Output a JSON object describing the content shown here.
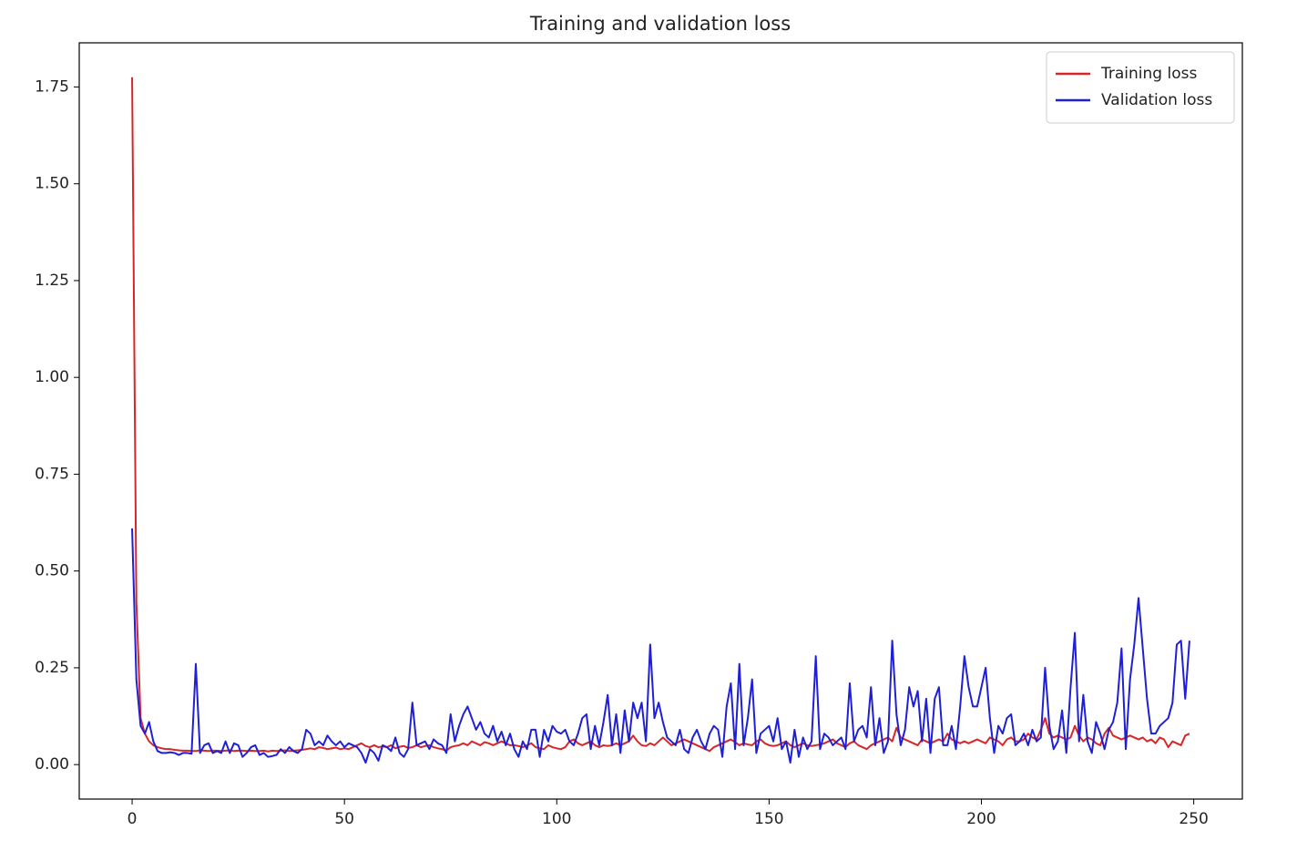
{
  "chart_data": {
    "type": "line",
    "title": "Training and validation loss",
    "x": [
      0,
      1,
      2,
      3,
      4,
      5,
      6,
      7,
      8,
      9,
      10,
      11,
      12,
      13,
      14,
      15,
      16,
      17,
      18,
      19,
      20,
      21,
      22,
      23,
      24,
      25,
      26,
      27,
      28,
      29,
      30,
      31,
      32,
      33,
      34,
      35,
      36,
      37,
      38,
      39,
      40,
      41,
      42,
      43,
      44,
      45,
      46,
      47,
      48,
      49,
      50,
      51,
      52,
      53,
      54,
      55,
      56,
      57,
      58,
      59,
      60,
      61,
      62,
      63,
      64,
      65,
      66,
      67,
      68,
      69,
      70,
      71,
      72,
      73,
      74,
      75,
      76,
      77,
      78,
      79,
      80,
      81,
      82,
      83,
      84,
      85,
      86,
      87,
      88,
      89,
      90,
      91,
      92,
      93,
      94,
      95,
      96,
      97,
      98,
      99,
      100,
      101,
      102,
      103,
      104,
      105,
      106,
      107,
      108,
      109,
      110,
      111,
      112,
      113,
      114,
      115,
      116,
      117,
      118,
      119,
      120,
      121,
      122,
      123,
      124,
      125,
      126,
      127,
      128,
      129,
      130,
      131,
      132,
      133,
      134,
      135,
      136,
      137,
      138,
      139,
      140,
      141,
      142,
      143,
      144,
      145,
      146,
      147,
      148,
      149,
      150,
      151,
      152,
      153,
      154,
      155,
      156,
      157,
      158,
      159,
      160,
      161,
      162,
      163,
      164,
      165,
      166,
      167,
      168,
      169,
      170,
      171,
      172,
      173,
      174,
      175,
      176,
      177,
      178,
      179,
      180,
      181,
      182,
      183,
      184,
      185,
      186,
      187,
      188,
      189,
      190,
      191,
      192,
      193,
      194,
      195,
      196,
      197,
      198,
      199,
      200,
      201,
      202,
      203,
      204,
      205,
      206,
      207,
      208,
      209,
      210,
      211,
      212,
      213,
      214,
      215,
      216,
      217,
      218,
      219,
      220,
      221,
      222,
      223,
      224,
      225,
      226,
      227,
      228,
      229,
      230,
      231,
      232,
      233,
      234,
      235,
      236,
      237,
      238,
      239,
      240,
      241,
      242,
      243,
      244,
      245,
      246,
      247,
      248,
      249
    ],
    "series": [
      {
        "name": "Training loss",
        "color": "#d62728",
        "values": [
          1.775,
          0.42,
          0.12,
          0.08,
          0.06,
          0.05,
          0.045,
          0.042,
          0.04,
          0.04,
          0.038,
          0.037,
          0.036,
          0.036,
          0.035,
          0.035,
          0.037,
          0.036,
          0.035,
          0.036,
          0.036,
          0.035,
          0.036,
          0.037,
          0.035,
          0.036,
          0.036,
          0.035,
          0.036,
          0.035,
          0.035,
          0.036,
          0.034,
          0.036,
          0.035,
          0.036,
          0.037,
          0.035,
          0.036,
          0.037,
          0.038,
          0.04,
          0.042,
          0.04,
          0.045,
          0.043,
          0.04,
          0.042,
          0.044,
          0.04,
          0.042,
          0.04,
          0.045,
          0.05,
          0.055,
          0.048,
          0.045,
          0.05,
          0.045,
          0.047,
          0.045,
          0.05,
          0.042,
          0.046,
          0.048,
          0.043,
          0.045,
          0.05,
          0.045,
          0.048,
          0.05,
          0.045,
          0.042,
          0.04,
          0.036,
          0.045,
          0.048,
          0.05,
          0.055,
          0.05,
          0.06,
          0.055,
          0.05,
          0.058,
          0.055,
          0.05,
          0.055,
          0.06,
          0.055,
          0.05,
          0.05,
          0.048,
          0.045,
          0.05,
          0.055,
          0.045,
          0.042,
          0.04,
          0.05,
          0.045,
          0.042,
          0.04,
          0.045,
          0.06,
          0.065,
          0.055,
          0.05,
          0.055,
          0.06,
          0.05,
          0.045,
          0.05,
          0.048,
          0.05,
          0.055,
          0.05,
          0.055,
          0.06,
          0.075,
          0.06,
          0.05,
          0.048,
          0.055,
          0.05,
          0.06,
          0.07,
          0.06,
          0.05,
          0.055,
          0.06,
          0.065,
          0.06,
          0.055,
          0.05,
          0.045,
          0.04,
          0.035,
          0.045,
          0.05,
          0.055,
          0.06,
          0.065,
          0.058,
          0.05,
          0.055,
          0.052,
          0.05,
          0.06,
          0.065,
          0.055,
          0.05,
          0.048,
          0.05,
          0.055,
          0.06,
          0.05,
          0.045,
          0.05,
          0.055,
          0.05,
          0.048,
          0.05,
          0.052,
          0.055,
          0.06,
          0.065,
          0.055,
          0.05,
          0.045,
          0.055,
          0.06,
          0.05,
          0.045,
          0.04,
          0.05,
          0.055,
          0.06,
          0.065,
          0.07,
          0.06,
          0.095,
          0.07,
          0.065,
          0.06,
          0.055,
          0.05,
          0.065,
          0.06,
          0.055,
          0.06,
          0.065,
          0.06,
          0.08,
          0.065,
          0.06,
          0.055,
          0.06,
          0.055,
          0.06,
          0.065,
          0.06,
          0.055,
          0.07,
          0.065,
          0.06,
          0.05,
          0.065,
          0.07,
          0.06,
          0.06,
          0.065,
          0.08,
          0.07,
          0.065,
          0.09,
          0.12,
          0.08,
          0.07,
          0.075,
          0.07,
          0.065,
          0.07,
          0.1,
          0.075,
          0.06,
          0.07,
          0.065,
          0.055,
          0.05,
          0.08,
          0.095,
          0.075,
          0.07,
          0.065,
          0.07,
          0.075,
          0.07,
          0.065,
          0.07,
          0.06,
          0.065,
          0.055,
          0.07,
          0.065,
          0.045,
          0.06,
          0.055,
          0.05,
          0.075,
          0.08
        ]
      },
      {
        "name": "Validation loss",
        "color": "#1f1fd6",
        "values": [
          0.61,
          0.22,
          0.1,
          0.08,
          0.11,
          0.06,
          0.035,
          0.03,
          0.03,
          0.032,
          0.03,
          0.025,
          0.03,
          0.03,
          0.028,
          0.26,
          0.03,
          0.05,
          0.055,
          0.03,
          0.035,
          0.03,
          0.06,
          0.03,
          0.055,
          0.05,
          0.02,
          0.03,
          0.045,
          0.05,
          0.025,
          0.03,
          0.02,
          0.022,
          0.025,
          0.04,
          0.03,
          0.045,
          0.035,
          0.03,
          0.04,
          0.09,
          0.08,
          0.05,
          0.06,
          0.05,
          0.075,
          0.06,
          0.05,
          0.06,
          0.045,
          0.055,
          0.05,
          0.045,
          0.03,
          0.005,
          0.04,
          0.03,
          0.01,
          0.05,
          0.045,
          0.035,
          0.07,
          0.03,
          0.02,
          0.04,
          0.16,
          0.05,
          0.055,
          0.06,
          0.04,
          0.065,
          0.055,
          0.05,
          0.03,
          0.13,
          0.06,
          0.1,
          0.13,
          0.15,
          0.12,
          0.09,
          0.11,
          0.08,
          0.07,
          0.1,
          0.06,
          0.085,
          0.05,
          0.08,
          0.04,
          0.02,
          0.06,
          0.04,
          0.09,
          0.09,
          0.02,
          0.09,
          0.06,
          0.1,
          0.085,
          0.08,
          0.09,
          0.06,
          0.05,
          0.08,
          0.12,
          0.13,
          0.04,
          0.1,
          0.05,
          0.11,
          0.18,
          0.05,
          0.13,
          0.03,
          0.14,
          0.06,
          0.16,
          0.12,
          0.16,
          0.06,
          0.31,
          0.12,
          0.16,
          0.11,
          0.07,
          0.06,
          0.05,
          0.09,
          0.04,
          0.03,
          0.07,
          0.09,
          0.06,
          0.04,
          0.08,
          0.1,
          0.09,
          0.02,
          0.15,
          0.21,
          0.04,
          0.26,
          0.05,
          0.12,
          0.22,
          0.03,
          0.08,
          0.09,
          0.1,
          0.06,
          0.12,
          0.04,
          0.06,
          0.005,
          0.09,
          0.02,
          0.07,
          0.04,
          0.06,
          0.28,
          0.04,
          0.08,
          0.07,
          0.05,
          0.06,
          0.07,
          0.04,
          0.21,
          0.06,
          0.09,
          0.1,
          0.07,
          0.2,
          0.05,
          0.12,
          0.03,
          0.06,
          0.32,
          0.13,
          0.05,
          0.09,
          0.2,
          0.15,
          0.19,
          0.06,
          0.17,
          0.03,
          0.17,
          0.2,
          0.05,
          0.05,
          0.1,
          0.04,
          0.15,
          0.28,
          0.2,
          0.15,
          0.15,
          0.2,
          0.25,
          0.12,
          0.03,
          0.1,
          0.08,
          0.12,
          0.13,
          0.05,
          0.06,
          0.08,
          0.05,
          0.09,
          0.06,
          0.07,
          0.25,
          0.1,
          0.04,
          0.06,
          0.14,
          0.03,
          0.2,
          0.34,
          0.06,
          0.18,
          0.06,
          0.03,
          0.11,
          0.08,
          0.04,
          0.09,
          0.11,
          0.16,
          0.3,
          0.04,
          0.22,
          0.31,
          0.43,
          0.3,
          0.17,
          0.08,
          0.08,
          0.1,
          0.11,
          0.12,
          0.16,
          0.31,
          0.32,
          0.17,
          0.32
        ]
      }
    ],
    "xlim": [
      -12.45,
      261.45
    ],
    "ylim": [
      -0.089,
      1.864
    ],
    "xticks": [
      0,
      50,
      100,
      150,
      200,
      250
    ],
    "yticks": [
      {
        "value": 0,
        "label": "0.00"
      },
      0.25,
      {
        "value": 0.5,
        "label": "0.50"
      },
      0.75,
      {
        "value": 1,
        "label": "1.00"
      },
      1.25,
      {
        "value": 1.5,
        "label": "1.50"
      },
      1.75
    ],
    "grid": false,
    "legend": "upper right"
  }
}
